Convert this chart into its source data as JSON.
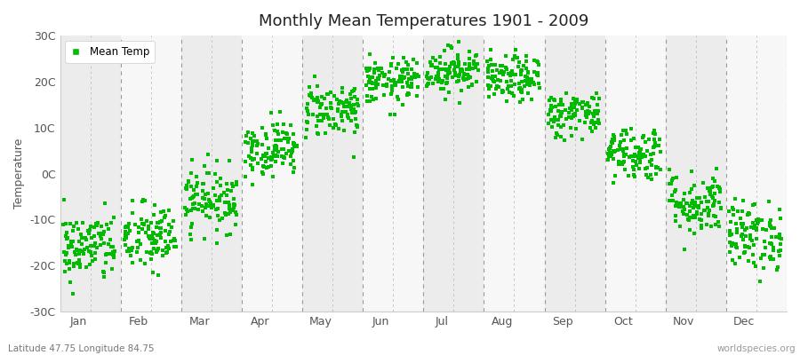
{
  "title": "Monthly Mean Temperatures 1901 - 2009",
  "ylabel": "Temperature",
  "bottom_left": "Latitude 47.75 Longitude 84.75",
  "bottom_right": "worldspecies.org",
  "ylim": [
    -30,
    30
  ],
  "yticks": [
    -30,
    -20,
    -10,
    0,
    10,
    20,
    30
  ],
  "ytick_labels": [
    "-30C",
    "-20C",
    "-10C",
    "0C",
    "10C",
    "20C",
    "30C"
  ],
  "months": [
    "Jan",
    "Feb",
    "Mar",
    "Apr",
    "May",
    "Jun",
    "Jul",
    "Aug",
    "Sep",
    "Oct",
    "Nov",
    "Dec"
  ],
  "mean_temps": [
    -16.0,
    -14.0,
    -5.5,
    5.5,
    14.0,
    20.0,
    22.5,
    20.5,
    13.0,
    4.5,
    -6.5,
    -13.5
  ],
  "std_temps": [
    3.8,
    3.8,
    3.5,
    3.0,
    3.0,
    2.5,
    2.5,
    2.5,
    2.5,
    3.0,
    3.5,
    3.8
  ],
  "n_years": 109,
  "marker_color": "#00BB00",
  "marker_size": 3,
  "bg_even": "#ECECEC",
  "bg_odd": "#F7F7F7",
  "fig_bg": "#FFFFFF",
  "legend_label": "Mean Temp",
  "seed": 42,
  "dashes_per_month": 2
}
